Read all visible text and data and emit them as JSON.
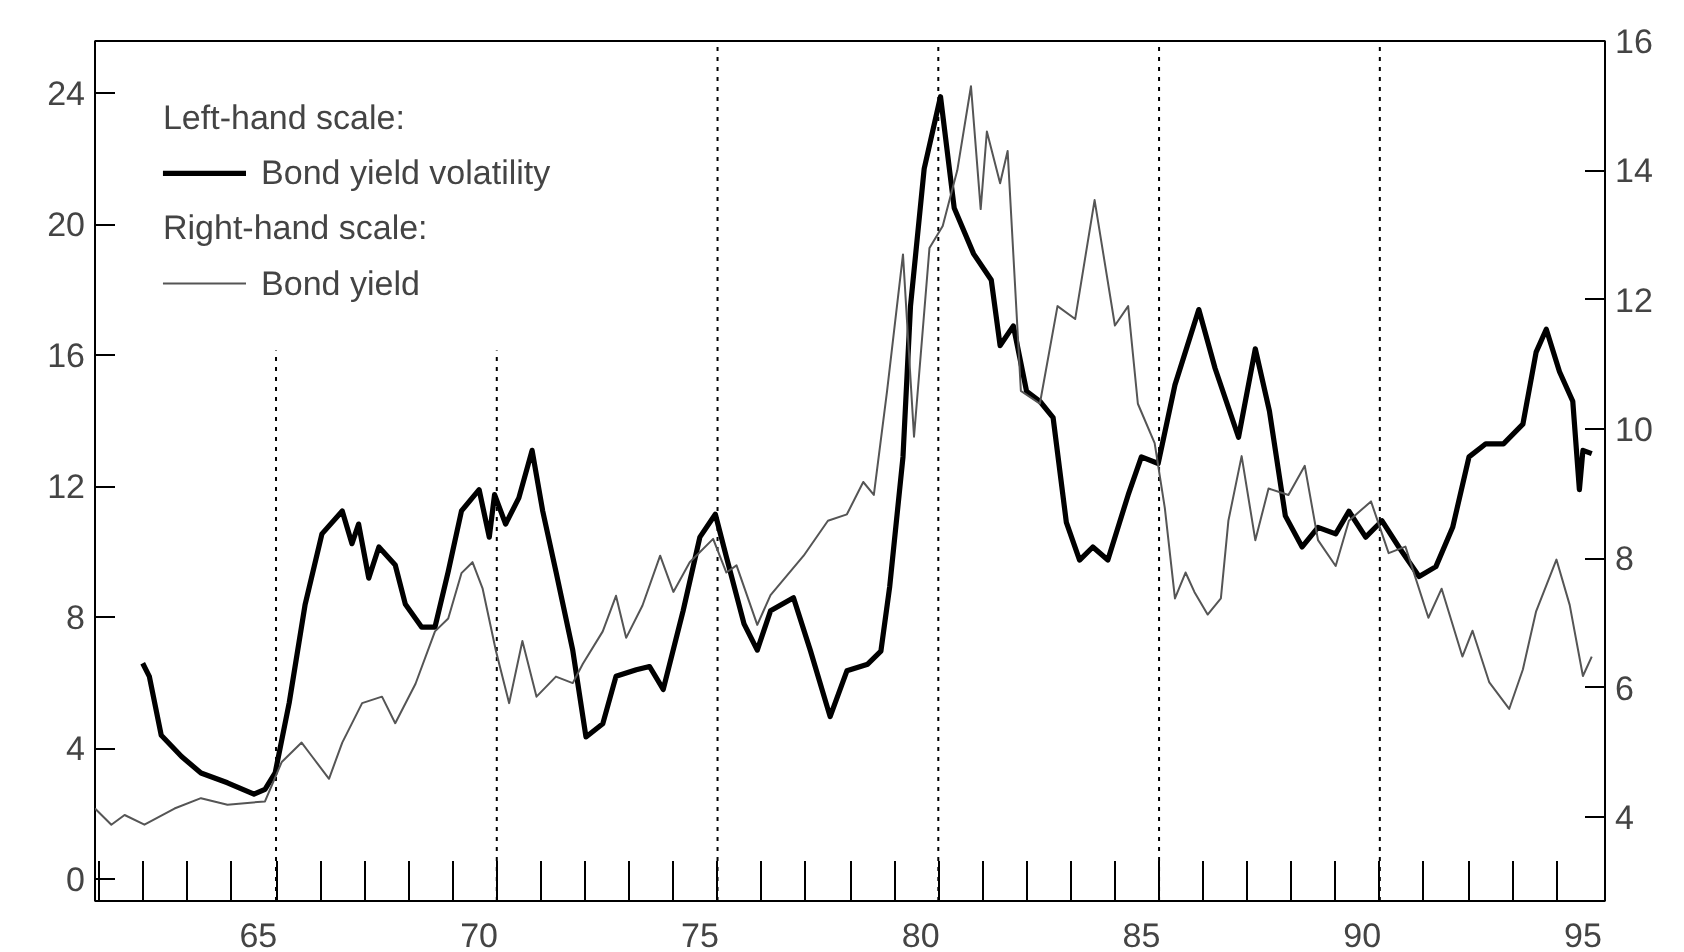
{
  "chart_data": {
    "type": "line",
    "xlim": [
      61.3,
      95.5
    ],
    "ylim": [
      -0.66,
      25.6
    ],
    "y2lim": [
      2.7,
      16.0
    ],
    "xticks": [
      65,
      70,
      75,
      80,
      85,
      90,
      95
    ],
    "yticks": [
      0,
      4,
      8,
      12,
      16,
      20,
      24
    ],
    "y2ticks": [
      4,
      6,
      8,
      10,
      12,
      14,
      16
    ],
    "grid": false,
    "legend": "top left",
    "annotations": [
      "Left-hand scale:",
      "Right-hand scale:"
    ],
    "ref_lines": [
      {
        "axis": "x",
        "value": 65.4,
        "color": "#000000",
        "line_style": "dotted"
      },
      {
        "axis": "x",
        "value": 70.4,
        "color": "#000000",
        "line_style": "dotted"
      },
      {
        "axis": "x",
        "value": 75.4,
        "color": "#000000",
        "line_style": "dotted"
      },
      {
        "axis": "x",
        "value": 80.4,
        "color": "#000000",
        "line_style": "dotted"
      },
      {
        "axis": "x",
        "value": 85.4,
        "color": "#000000",
        "line_style": "dotted"
      },
      {
        "axis": "x",
        "value": 90.4,
        "color": "#000000",
        "line_style": "dotted"
      }
    ],
    "series": [
      {
        "name": "Bond yield volatility",
        "color": "#000000",
        "x": [
          62.38,
          62.53,
          62.8,
          63.26,
          63.7,
          64.3,
          64.9,
          65.15,
          65.38,
          65.7,
          66.06,
          66.44,
          66.9,
          67.12,
          67.27,
          67.5,
          67.73,
          68.1,
          68.33,
          68.7,
          69.0,
          69.3,
          69.6,
          70.0,
          70.23,
          70.35,
          70.6,
          70.9,
          71.2,
          71.44,
          71.74,
          72.12,
          72.42,
          72.8,
          73.1,
          73.56,
          73.86,
          74.17,
          74.62,
          75.0,
          75.35,
          75.6,
          76.0,
          76.3,
          76.6,
          77.12,
          77.5,
          77.95,
          78.33,
          78.8,
          79.1,
          79.3,
          79.6,
          79.77,
          80.08,
          80.45,
          80.76,
          81.2,
          81.6,
          81.8,
          82.1,
          82.4,
          82.7,
          83.0,
          83.3,
          83.6,
          83.9,
          84.24,
          84.7,
          85.0,
          85.38,
          85.76,
          86.3,
          86.67,
          87.2,
          87.58,
          87.9,
          88.26,
          88.64,
          89.0,
          89.4,
          89.7,
          90.08,
          90.45,
          90.83,
          91.29,
          91.67,
          92.05,
          92.42,
          92.8,
          93.2,
          93.64,
          93.94,
          94.17,
          94.47,
          94.77,
          94.92,
          95.0,
          95.2
        ],
        "values": [
          6.6,
          6.2,
          4.4,
          3.75,
          3.25,
          2.95,
          2.6,
          2.75,
          3.25,
          5.4,
          8.4,
          10.55,
          11.25,
          10.25,
          10.85,
          9.2,
          10.15,
          9.6,
          8.4,
          7.7,
          7.7,
          9.4,
          11.25,
          11.9,
          10.45,
          11.75,
          10.85,
          11.65,
          13.1,
          11.25,
          9.4,
          7.0,
          4.35,
          4.75,
          6.2,
          6.4,
          6.5,
          5.8,
          8.2,
          10.45,
          11.15,
          9.85,
          7.8,
          7.0,
          8.2,
          8.6,
          7.0,
          4.97,
          6.37,
          6.57,
          6.97,
          8.95,
          12.9,
          17.5,
          21.7,
          23.9,
          20.5,
          19.1,
          18.3,
          16.3,
          16.9,
          14.9,
          14.6,
          14.1,
          10.9,
          9.75,
          10.15,
          9.75,
          11.74,
          12.9,
          12.7,
          15.1,
          17.4,
          15.6,
          13.5,
          16.2,
          14.3,
          11.1,
          10.15,
          10.75,
          10.55,
          11.24,
          10.45,
          10.95,
          10.15,
          9.25,
          9.55,
          10.75,
          12.9,
          13.3,
          13.3,
          13.9,
          16.1,
          16.8,
          15.5,
          14.6,
          11.9,
          13.1,
          13.0
        ]
      },
      {
        "name": "Bond yield",
        "color": "#555555",
        "axis": "y2",
        "x": [
          61.3,
          61.67,
          61.97,
          62.42,
          63.1,
          63.7,
          64.3,
          65.15,
          65.53,
          65.98,
          66.2,
          66.6,
          66.9,
          67.35,
          67.8,
          68.1,
          68.56,
          69.0,
          69.3,
          69.6,
          69.85,
          70.08,
          70.38,
          70.68,
          70.98,
          71.3,
          71.74,
          72.12,
          72.35,
          72.8,
          73.1,
          73.33,
          73.7,
          74.1,
          74.4,
          74.77,
          75.3,
          75.6,
          75.83,
          76.3,
          76.6,
          77.35,
          77.9,
          78.33,
          78.7,
          78.94,
          79.24,
          79.6,
          79.85,
          80.2,
          80.5,
          80.83,
          81.14,
          81.36,
          81.5,
          81.8,
          81.97,
          82.27,
          82.7,
          83.1,
          83.5,
          83.94,
          84.4,
          84.7,
          84.92,
          85.3,
          85.53,
          85.76,
          86.0,
          86.2,
          86.5,
          86.8,
          86.97,
          87.27,
          87.58,
          87.88,
          88.33,
          88.7,
          89.0,
          89.4,
          89.7,
          90.2,
          90.6,
          90.98,
          91.5,
          91.8,
          92.27,
          92.5,
          92.88,
          93.33,
          93.64,
          93.94,
          94.4,
          94.7,
          95.0,
          95.2
        ],
        "values": [
          4.13,
          3.88,
          4.03,
          3.88,
          4.13,
          4.29,
          4.19,
          4.24,
          4.85,
          5.15,
          4.95,
          4.59,
          5.15,
          5.76,
          5.86,
          5.45,
          6.06,
          6.87,
          7.07,
          7.77,
          7.94,
          7.53,
          6.57,
          5.76,
          6.72,
          5.86,
          6.17,
          6.07,
          6.37,
          6.87,
          7.42,
          6.77,
          7.27,
          8.04,
          7.48,
          7.94,
          8.3,
          7.78,
          7.89,
          6.97,
          7.43,
          8.04,
          8.58,
          8.68,
          9.18,
          8.98,
          10.59,
          12.7,
          9.88,
          12.8,
          13.14,
          14.0,
          15.3,
          13.4,
          14.6,
          13.8,
          14.3,
          10.59,
          10.39,
          11.9,
          11.7,
          13.54,
          11.6,
          11.9,
          10.39,
          9.78,
          8.78,
          7.38,
          7.78,
          7.48,
          7.13,
          7.38,
          8.58,
          9.58,
          8.28,
          9.08,
          8.98,
          9.43,
          8.28,
          7.88,
          8.58,
          8.88,
          8.08,
          8.18,
          7.08,
          7.53,
          6.48,
          6.88,
          6.08,
          5.67,
          6.28,
          7.18,
          7.98,
          7.28,
          6.18,
          6.48
        ]
      }
    ]
  }
}
